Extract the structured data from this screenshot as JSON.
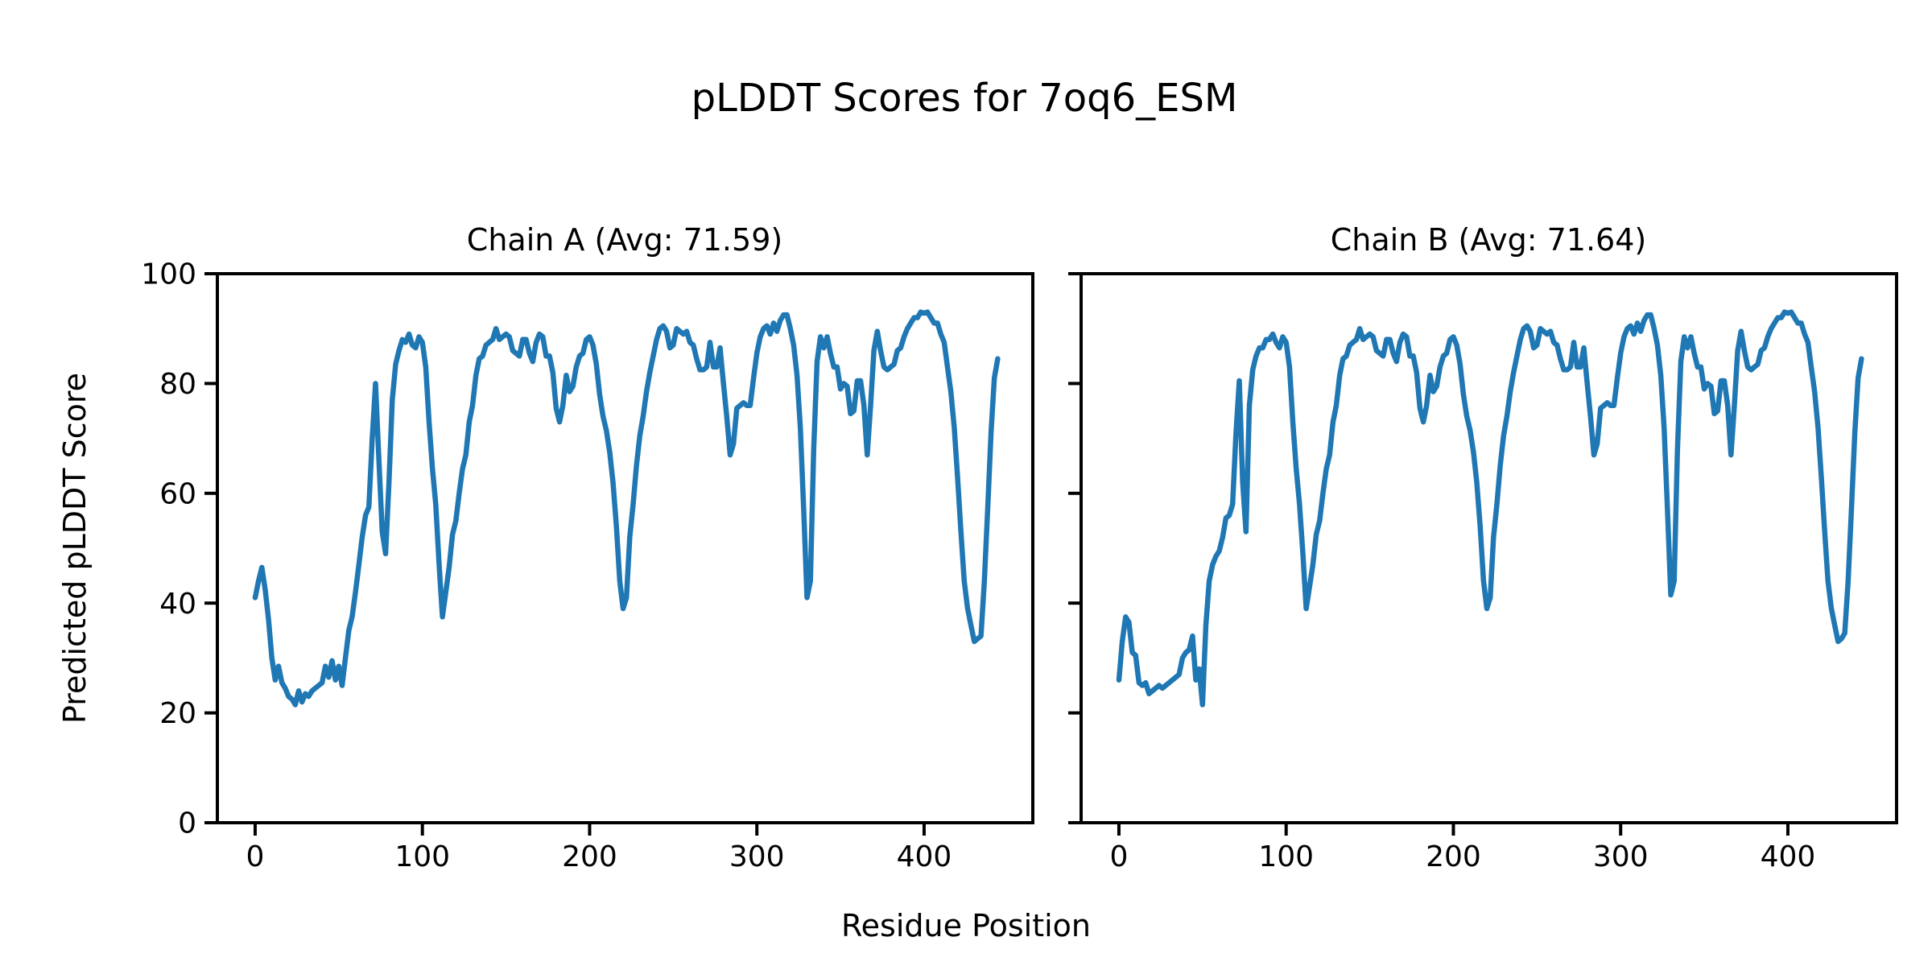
{
  "figure": {
    "background": "#ffffff",
    "text_color": "#000000"
  },
  "chart_data": {
    "type": "line",
    "suptitle": "pLDDT Scores for 7oq6_ESM",
    "xlabel": "Residue Position",
    "ylabel": "Predicted pLDDT Score",
    "line_color": "#1f77b4",
    "axis_color": "#000000",
    "grid": false,
    "legend_position": "none",
    "xlim": [
      -22.6,
      465
    ],
    "ylim": [
      0,
      100
    ],
    "xticks": [
      0,
      100,
      200,
      300,
      400
    ],
    "yticks": [
      0,
      20,
      40,
      60,
      80,
      100
    ],
    "x_start": 0,
    "x_step": 2,
    "subplots": [
      {
        "title": "Chain A (Avg: 71.59)",
        "series_name": "Chain A",
        "avg": 71.59,
        "scores": [
          41,
          44,
          46.5,
          42.5,
          37,
          30,
          26,
          28.5,
          25.5,
          24.5,
          23,
          22.5,
          21.5,
          24,
          22,
          23.5,
          23,
          24,
          24.5,
          25,
          25.5,
          28.5,
          26.5,
          29.5,
          26,
          28.5,
          25,
          30,
          35,
          37.5,
          42,
          47,
          52,
          56,
          57.5,
          70,
          80,
          66,
          53,
          49,
          62,
          77,
          83.5,
          86,
          88,
          87.5,
          89,
          87,
          86.5,
          88.5,
          87.5,
          83,
          73,
          64.5,
          58,
          47,
          37.5,
          42,
          46.5,
          52.5,
          55,
          60,
          64.5,
          67,
          73,
          76,
          81.5,
          84.5,
          85,
          87,
          87.5,
          88,
          90,
          88,
          88.5,
          89,
          88.5,
          86,
          85.5,
          85,
          88,
          88,
          85.5,
          84,
          87.5,
          89,
          88.5,
          85,
          85,
          82,
          75.5,
          73,
          76,
          81.5,
          78.5,
          79.5,
          83,
          85,
          85.5,
          88,
          88.5,
          87,
          83.5,
          78,
          74,
          71.5,
          67.5,
          62,
          54,
          44,
          39,
          41,
          52,
          58,
          65,
          70.5,
          74,
          78.5,
          82,
          85,
          88,
          90,
          90.5,
          89.5,
          86.5,
          87,
          90,
          89.5,
          89,
          89.5,
          87.5,
          87,
          84.5,
          82.5,
          82.5,
          83,
          87.5,
          83,
          83,
          86.5,
          80,
          74,
          67,
          69,
          75.5,
          76,
          76.5,
          76,
          76,
          81,
          85.5,
          88.5,
          90,
          90.5,
          89,
          91,
          89.5,
          91.5,
          92.5,
          92.5,
          90,
          87,
          81.5,
          72,
          57,
          41,
          44,
          68,
          84,
          88.5,
          86.5,
          88.5,
          85.5,
          83,
          83,
          79,
          80,
          79.5,
          74.5,
          75,
          80.5,
          80.5,
          76,
          67,
          76,
          86,
          89.5,
          86,
          83,
          82.5,
          83,
          83.5,
          86,
          86.5,
          88.5,
          90,
          91,
          92,
          92,
          93,
          92.8,
          93,
          92,
          91,
          91,
          89,
          87.5,
          83,
          78.5,
          72,
          63,
          53,
          44,
          39,
          36,
          33,
          33.5,
          34,
          44,
          57,
          71,
          81,
          84.5
        ]
      },
      {
        "title": "Chain B (Avg: 71.64)",
        "series_name": "Chain B",
        "avg": 71.64,
        "scores": [
          26,
          33,
          37.5,
          36.5,
          31,
          30.5,
          25.5,
          25,
          25.5,
          23.5,
          24,
          24.5,
          25,
          24.5,
          25,
          25.5,
          26,
          26.5,
          27,
          30,
          31,
          31.5,
          34,
          26,
          28,
          21.5,
          36,
          44,
          47,
          48.5,
          49.5,
          52,
          55.5,
          56,
          58,
          71,
          80.5,
          62,
          53,
          76,
          82.5,
          85,
          86.5,
          86.5,
          88,
          88,
          89,
          87.5,
          86.5,
          88.5,
          87.5,
          83,
          73,
          64.5,
          58,
          49,
          39,
          43,
          47,
          52.5,
          55,
          60,
          64.5,
          67,
          73,
          76,
          81.5,
          84.5,
          85,
          87,
          87.5,
          88,
          90,
          88,
          88.5,
          89,
          88.5,
          86,
          85.5,
          85,
          88,
          88,
          85.5,
          84,
          87.5,
          89,
          88.5,
          85,
          85,
          82,
          75.5,
          73,
          76,
          81.5,
          78.5,
          79.5,
          83,
          85,
          85.5,
          88,
          88.5,
          87,
          83.5,
          78,
          74,
          71.5,
          67.5,
          62,
          54,
          44,
          39,
          41,
          52,
          58,
          65,
          70.5,
          74,
          78.5,
          82,
          85,
          88,
          90,
          90.5,
          89.5,
          86.5,
          87,
          90,
          89.5,
          89,
          89.5,
          87.5,
          87,
          84.5,
          82.5,
          82.5,
          83,
          87.5,
          83,
          83,
          86.5,
          80,
          74,
          67,
          69,
          75.5,
          76,
          76.5,
          76,
          76,
          81,
          85.5,
          88.5,
          90,
          90.5,
          89,
          91,
          89.5,
          91.5,
          92.5,
          92.5,
          90,
          87,
          81.5,
          72,
          57,
          41.5,
          44,
          68,
          84,
          88.5,
          86.5,
          88.5,
          85.5,
          83,
          83,
          79,
          80,
          79.5,
          74.5,
          75,
          80.5,
          80.5,
          76,
          67,
          76,
          86,
          89.5,
          86,
          83,
          82.5,
          83,
          83.5,
          86,
          86.5,
          88.5,
          90,
          91,
          92,
          92,
          93,
          92.8,
          93,
          92,
          91,
          91,
          89,
          87.5,
          83,
          78.5,
          72,
          63,
          53,
          44,
          39,
          36,
          33,
          33.5,
          34.5,
          44,
          57,
          71,
          81,
          84.5
        ]
      }
    ]
  }
}
